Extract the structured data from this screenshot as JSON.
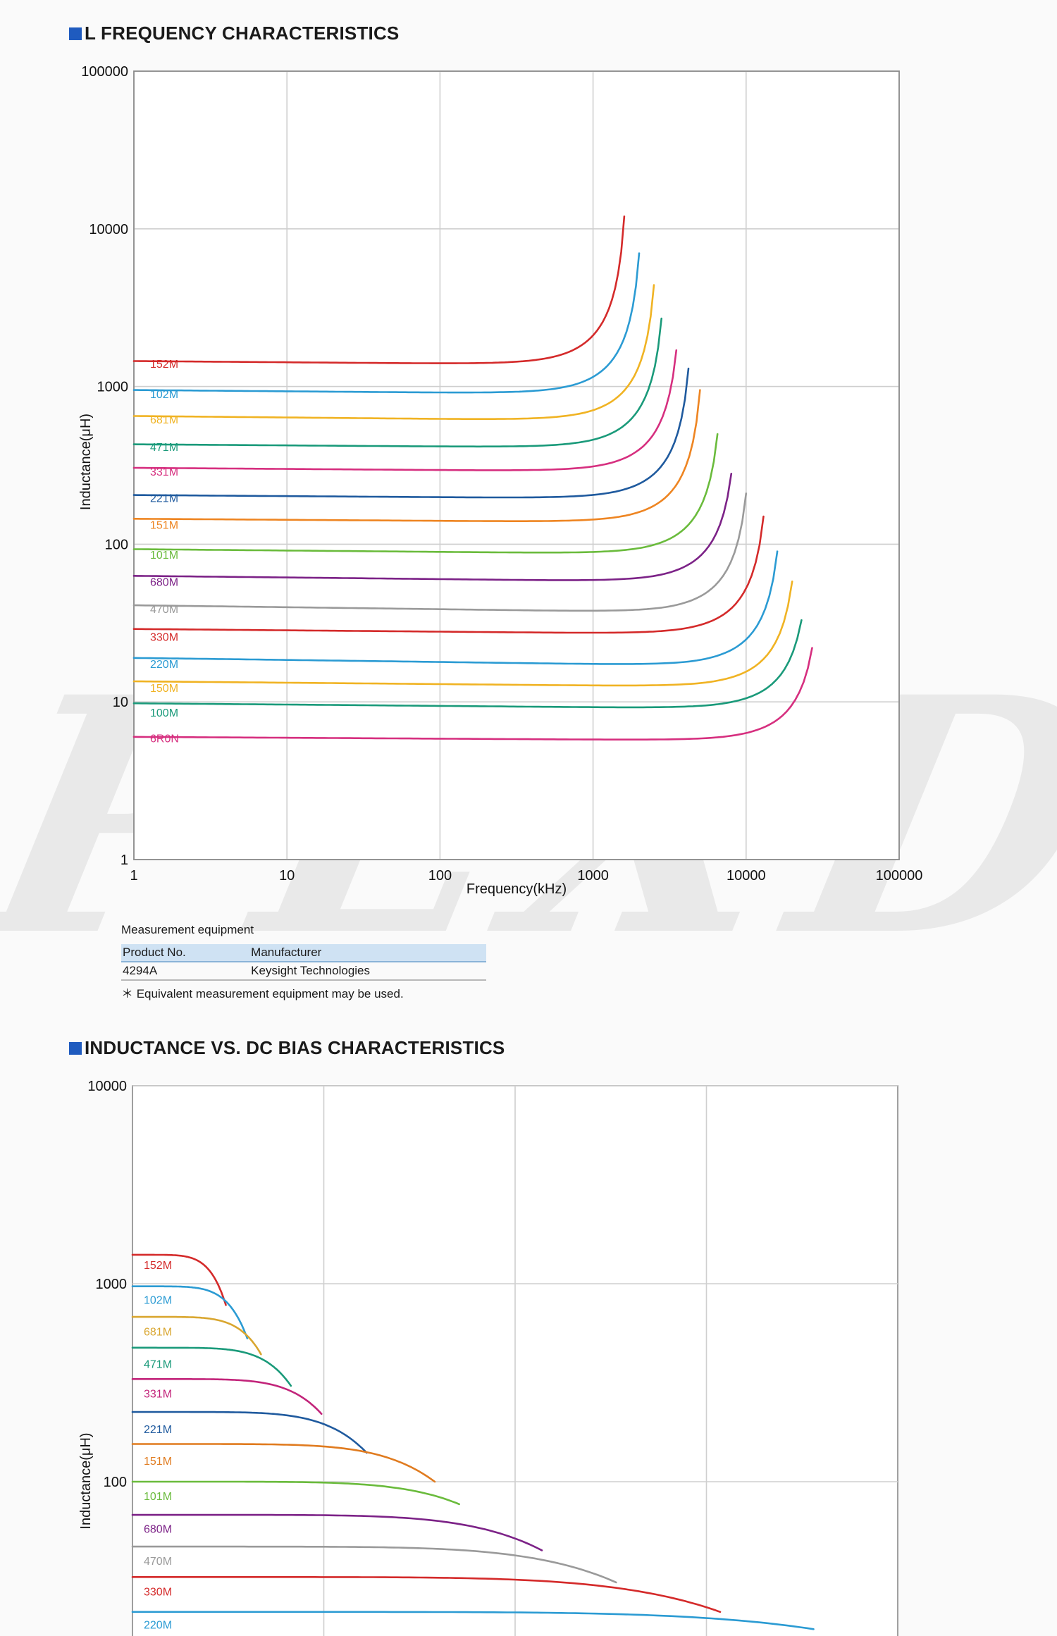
{
  "watermark": "PLXDZ",
  "section1": {
    "title": "L FREQUENCY CHARACTERISTICS"
  },
  "section2": {
    "title": "INDUCTANCE VS. DC BIAS CHARACTERISTICS"
  },
  "equipment": {
    "heading": "Measurement equipment",
    "columns": [
      "Product No.",
      "Manufacturer"
    ],
    "rows": [
      [
        "4294A",
        "Keysight Technologies"
      ]
    ],
    "note": "＊ Equivalent measurement equipment may be used."
  },
  "chart_data": [
    {
      "type": "line",
      "title": "L FREQUENCY CHARACTERISTICS",
      "xlabel": "Frequency(kHz)",
      "ylabel": "Inductance(μH)",
      "xscale": "log",
      "yscale": "log",
      "xlim": [
        1,
        100000
      ],
      "ylim": [
        1,
        100000
      ],
      "xticks": [
        "1",
        "10",
        "100",
        "1000",
        "10000",
        "100000"
      ],
      "yticks": [
        "1",
        "10",
        "100",
        "1000",
        "10000",
        "100000"
      ],
      "grid": true,
      "series": [
        {
          "name": "152M",
          "color": "#d42a2a",
          "L0": 1450,
          "Lmin": 1380,
          "f_end": 1600,
          "L_end": 12000,
          "label_y": 1400
        },
        {
          "name": "102M",
          "color": "#2b9bd3",
          "L0": 950,
          "Lmin": 900,
          "f_end": 2000,
          "L_end": 7000,
          "label_y": 900
        },
        {
          "name": "681M",
          "color": "#f0b323",
          "L0": 650,
          "Lmin": 610,
          "f_end": 2500,
          "L_end": 4400,
          "label_y": 620
        },
        {
          "name": "471M",
          "color": "#1a9a7a",
          "L0": 430,
          "Lmin": 410,
          "f_end": 2800,
          "L_end": 2700,
          "label_y": 415
        },
        {
          "name": "331M",
          "color": "#d62f7f",
          "L0": 305,
          "Lmin": 290,
          "f_end": 3500,
          "L_end": 1700,
          "label_y": 290
        },
        {
          "name": "221M",
          "color": "#1f5a9e",
          "L0": 205,
          "Lmin": 195,
          "f_end": 4200,
          "L_end": 1300,
          "label_y": 197
        },
        {
          "name": "151M",
          "color": "#ee8522",
          "L0": 145,
          "Lmin": 138,
          "f_end": 5000,
          "L_end": 950,
          "label_y": 133
        },
        {
          "name": "101M",
          "color": "#6abb3c",
          "L0": 93,
          "Lmin": 87,
          "f_end": 6500,
          "L_end": 500,
          "label_y": 86
        },
        {
          "name": "680M",
          "color": "#7c2287",
          "L0": 63,
          "Lmin": 58,
          "f_end": 8000,
          "L_end": 280,
          "label_y": 58
        },
        {
          "name": "470M",
          "color": "#9a9a9a",
          "L0": 41,
          "Lmin": 37,
          "f_end": 10000,
          "L_end": 210,
          "label_y": 39
        },
        {
          "name": "330M",
          "color": "#d42a2a",
          "L0": 29,
          "Lmin": 27,
          "f_end": 13000,
          "L_end": 150,
          "label_y": 26
        },
        {
          "name": "220M",
          "color": "#2b9bd3",
          "L0": 19,
          "Lmin": 17,
          "f_end": 16000,
          "L_end": 90,
          "label_y": 17.5
        },
        {
          "name": "150M",
          "color": "#f0b323",
          "L0": 13.5,
          "Lmin": 12.5,
          "f_end": 20000,
          "L_end": 58,
          "label_y": 12.3
        },
        {
          "name": "100M",
          "color": "#1a9a7a",
          "L0": 9.8,
          "Lmin": 9.1,
          "f_end": 23000,
          "L_end": 33,
          "label_y": 8.6
        },
        {
          "name": "6R0N",
          "color": "#d62f7f",
          "L0": 6.0,
          "Lmin": 5.7,
          "f_end": 27000,
          "L_end": 22,
          "label_y": 5.9
        }
      ]
    },
    {
      "type": "line",
      "title": "INDUCTANCE VS. DC BIAS CHARACTERISTICS",
      "xlabel": "",
      "ylabel": "Inductance(μH)",
      "yscale": "log",
      "ylim": [
        10,
        10000
      ],
      "yticks": [
        "100",
        "1000",
        "10000"
      ],
      "x_units": "fraction of visible width",
      "grid": true,
      "series": [
        {
          "name": "152M",
          "color": "#d42a2a",
          "L0": 1400,
          "x_end": 0.122,
          "L_end": 780,
          "label_y": 1250
        },
        {
          "name": "102M",
          "color": "#2b9bd3",
          "L0": 970,
          "x_end": 0.15,
          "L_end": 530,
          "label_y": 830
        },
        {
          "name": "681M",
          "color": "#d9a62f",
          "L0": 680,
          "x_end": 0.168,
          "L_end": 440,
          "label_y": 575
        },
        {
          "name": "471M",
          "color": "#1a9a7a",
          "L0": 475,
          "x_end": 0.207,
          "L_end": 305,
          "label_y": 395
        },
        {
          "name": "331M",
          "color": "#c2247a",
          "L0": 330,
          "x_end": 0.247,
          "L_end": 220,
          "label_y": 280
        },
        {
          "name": "221M",
          "color": "#1f5a9e",
          "L0": 225,
          "x_end": 0.306,
          "L_end": 140,
          "label_y": 185
        },
        {
          "name": "151M",
          "color": "#e07b1f",
          "L0": 155,
          "x_end": 0.395,
          "L_end": 100,
          "label_y": 128
        },
        {
          "name": "101M",
          "color": "#6abb3c",
          "L0": 100,
          "x_end": 0.427,
          "L_end": 77,
          "label_y": 85
        },
        {
          "name": "680M",
          "color": "#7c2287",
          "L0": 68,
          "x_end": 0.535,
          "L_end": 45,
          "label_y": 58
        },
        {
          "name": "470M",
          "color": "#9a9a9a",
          "L0": 47,
          "x_end": 0.632,
          "L_end": 31,
          "label_y": 40
        },
        {
          "name": "330M",
          "color": "#d42a2a",
          "L0": 33,
          "x_end": 0.768,
          "L_end": 22,
          "label_y": 28
        },
        {
          "name": "220M",
          "color": "#2b9bd3",
          "L0": 22,
          "x_end": 0.89,
          "L_end": 18,
          "label_y": 19
        }
      ]
    }
  ]
}
